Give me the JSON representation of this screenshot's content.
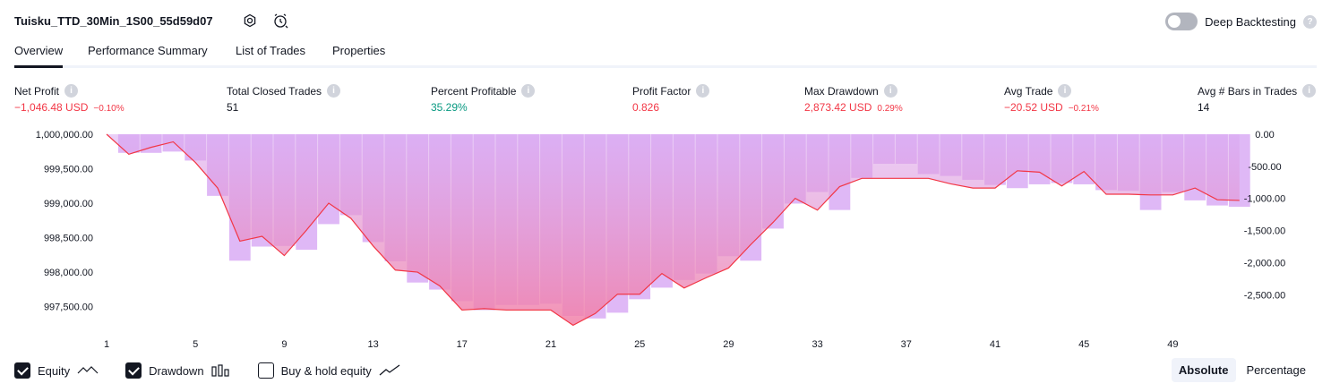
{
  "header": {
    "title": "Tuisku_TTD_30Min_1S00_55d59d07",
    "deep_backtesting_label": "Deep Backtesting"
  },
  "tabs": [
    {
      "label": "Overview"
    },
    {
      "label": "Performance Summary"
    },
    {
      "label": "List of Trades"
    },
    {
      "label": "Properties"
    }
  ],
  "metrics": {
    "net_profit": {
      "label": "Net Profit",
      "value": "−1,046.48 USD",
      "sub": "−0.10%"
    },
    "total_closed_trades": {
      "label": "Total Closed Trades",
      "value": "51"
    },
    "percent_profitable": {
      "label": "Percent Profitable",
      "value": "35.29%"
    },
    "profit_factor": {
      "label": "Profit Factor",
      "value": "0.826"
    },
    "max_drawdown": {
      "label": "Max Drawdown",
      "value": "2,873.42 USD",
      "sub": "0.29%"
    },
    "avg_trade": {
      "label": "Avg Trade",
      "value": "−20.52 USD",
      "sub": "−0.21%"
    },
    "avg_bars": {
      "label": "Avg # Bars in Trades",
      "value": "14"
    }
  },
  "chart_data": {
    "type": "line",
    "x_ticks": [
      "1",
      "5",
      "9",
      "13",
      "17",
      "21",
      "25",
      "29",
      "33",
      "37",
      "41",
      "45",
      "49"
    ],
    "left_ticks": [
      "1,000,000.00",
      "999,500.00",
      "999,000.00",
      "998,500.00",
      "998,000.00",
      "997,500.00"
    ],
    "right_ticks": [
      "0.00",
      "-500.00",
      "-1,000.00",
      "-1,500.00",
      "-2,000.00",
      "-2,500.00"
    ],
    "left_ylim": [
      997300,
      1000000
    ],
    "right_ylim": [
      -2900,
      0
    ],
    "series": [
      {
        "name": "Equity",
        "x": [
          1,
          2,
          3,
          4,
          5,
          6,
          7,
          8,
          9,
          10,
          11,
          12,
          13,
          14,
          15,
          16,
          17,
          18,
          19,
          20,
          21,
          22,
          23,
          24,
          25,
          26,
          27,
          28,
          29,
          30,
          31,
          32,
          33,
          34,
          35,
          36,
          37,
          38,
          39,
          40,
          41,
          42,
          43,
          44,
          45,
          46,
          47,
          48,
          49,
          50,
          51,
          52
        ],
        "values": [
          1000000,
          999710,
          999810,
          999890,
          999590,
          999220,
          998450,
          998520,
          998240,
          998610,
          999000,
          998780,
          998380,
          998030,
          998000,
          997800,
          997450,
          997470,
          997450,
          997450,
          997450,
          997230,
          997400,
          997680,
          997680,
          997980,
          997770,
          997920,
          998060,
          998400,
          998720,
          999070,
          998900,
          999240,
          999360,
          999360,
          999360,
          999360,
          999280,
          999220,
          999220,
          999470,
          999450,
          999250,
          999460,
          999130,
          999130,
          999120,
          999120,
          999220,
          999050,
          999040
        ]
      },
      {
        "name": "Drawdown",
        "x": [
          2,
          3,
          4,
          5,
          6,
          7,
          8,
          9,
          10,
          11,
          12,
          13,
          14,
          15,
          16,
          17,
          18,
          19,
          20,
          21,
          22,
          23,
          24,
          25,
          26,
          27,
          28,
          29,
          30,
          31,
          32,
          33,
          34,
          35,
          36,
          37,
          38,
          39,
          40,
          41,
          42,
          43,
          44,
          45,
          46,
          47,
          48,
          49,
          50,
          51,
          52
        ],
        "values": [
          -290,
          -290,
          -270,
          -410,
          -960,
          -1970,
          -1750,
          -1740,
          -1800,
          -1400,
          -1260,
          -1680,
          -1980,
          -2310,
          -2420,
          -2600,
          -2740,
          -2660,
          -2660,
          -2640,
          -2830,
          -2870,
          -2780,
          -2570,
          -2390,
          -2270,
          -2170,
          -1900,
          -1970,
          -1470,
          -1080,
          -900,
          -1180,
          -680,
          -460,
          -460,
          -620,
          -650,
          -710,
          -790,
          -840,
          -780,
          -760,
          -780,
          -870,
          -880,
          -1180,
          -900,
          -1030,
          -1110,
          -1130
        ]
      }
    ]
  },
  "legend": {
    "equity_label": "Equity",
    "drawdown_label": "Drawdown",
    "buyhold_label": "Buy & hold equity"
  },
  "mode": {
    "absolute_label": "Absolute",
    "percentage_label": "Percentage"
  }
}
